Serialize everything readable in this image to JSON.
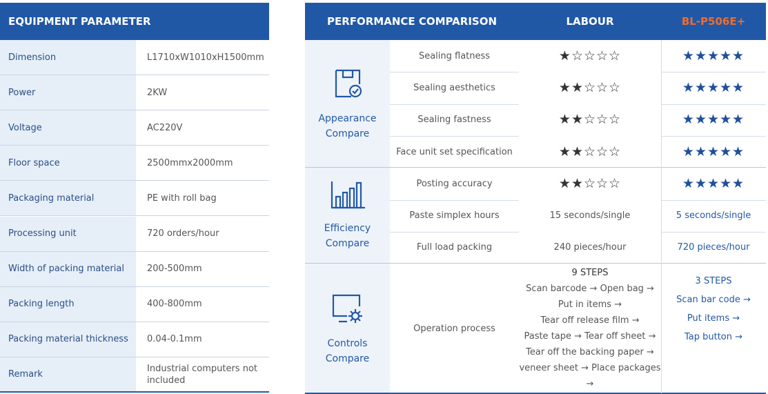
{
  "equipment": {
    "title": "EQUIPMENT PARAMETER",
    "rows": [
      [
        "Dimension",
        "L1710xW1010xH1500mm"
      ],
      [
        "Power",
        "2KW"
      ],
      [
        "Voltage",
        "AC220V"
      ],
      [
        "Floor space",
        "2500mmx2000mm"
      ],
      [
        "Packaging material",
        "PE with roll bag"
      ],
      [
        "Processing unit",
        "720 orders/hour"
      ],
      [
        "Width of packing material",
        "200-500mm"
      ],
      [
        "Packing length",
        "400-800mm"
      ],
      [
        "Packing material thickness",
        "0.04-0.1mm"
      ],
      [
        "Remark",
        "Industrial computers not included"
      ]
    ]
  },
  "performance": {
    "headers": [
      "PERFORMANCE COMPARISON",
      "LABOUR",
      "BL-P506E+"
    ],
    "groups": [
      {
        "label": "Appearance Compare",
        "rows": [
          {
            "criterion": "Sealing flatness",
            "labour": [
              "★☆☆☆☆"
            ],
            "bl": [
              "★★★★★"
            ]
          },
          {
            "criterion": "Sealing aesthetics",
            "labour": [
              "★★☆☆☆"
            ],
            "bl": [
              "★★★★★"
            ]
          },
          {
            "criterion": "Sealing fastness",
            "labour": [
              "★★☆☆☆"
            ],
            "bl": [
              "★★★★★"
            ]
          },
          {
            "criterion": "Face unit set specification",
            "labour": [
              "★★☆☆☆"
            ],
            "bl": [
              "★★★★★"
            ]
          }
        ]
      },
      {
        "label": "Efficiency Compare",
        "rows": [
          {
            "criterion": "Posting accuracy",
            "labour": [
              "★★☆☆☆"
            ],
            "bl": [
              "★★★★★"
            ]
          },
          {
            "criterion": "Paste simplex hours",
            "labour": [
              "15 seconds/single"
            ],
            "bl": [
              "5 seconds/single"
            ]
          },
          {
            "criterion": "Full load packing",
            "labour": [
              "240 pieces/hour"
            ],
            "bl": [
              "720 pieces/hour"
            ]
          }
        ]
      },
      {
        "label": "Controls Compare",
        "rows": [
          {
            "criterion": "Operation process",
            "labour": [
              "9 STEPS",
              "Scan barcode → Open bag →",
              "Put in items →",
              "Tear off release film →",
              "Paste tape → Tear off sheet →",
              "Tear off the backing paper →",
              "veneer sheet → Place packages →"
            ],
            "bl": [
              "3 STEPS",
              "Scan bar code →",
              "Put items →",
              "Tap button →"
            ]
          }
        ]
      }
    ]
  }
}
